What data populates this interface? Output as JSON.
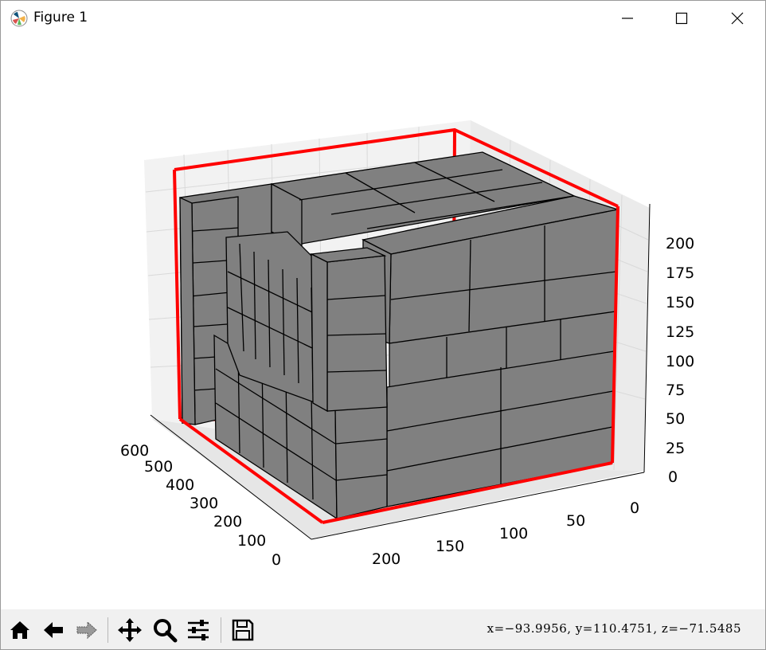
{
  "window": {
    "title": "Figure 1",
    "controls": [
      "minimize",
      "maximize",
      "close"
    ]
  },
  "figure": {
    "box_color": "#ff0000",
    "block_fill": "#808080",
    "block_edge": "#000000",
    "z_ticks": [
      "0",
      "25",
      "50",
      "75",
      "100",
      "125",
      "150",
      "175",
      "200"
    ],
    "x_ticks": [
      "0",
      "50",
      "100",
      "150",
      "200"
    ],
    "y_ticks": [
      "0",
      "100",
      "200",
      "300",
      "400",
      "500",
      "600"
    ]
  },
  "toolbar": {
    "buttons": [
      "home-icon",
      "back-icon",
      "forward-icon",
      "pan-icon",
      "zoom-icon",
      "configure-icon",
      "save-icon"
    ],
    "coords": "x=−93.9956,  y=110.4751,  z=−71.5485"
  }
}
